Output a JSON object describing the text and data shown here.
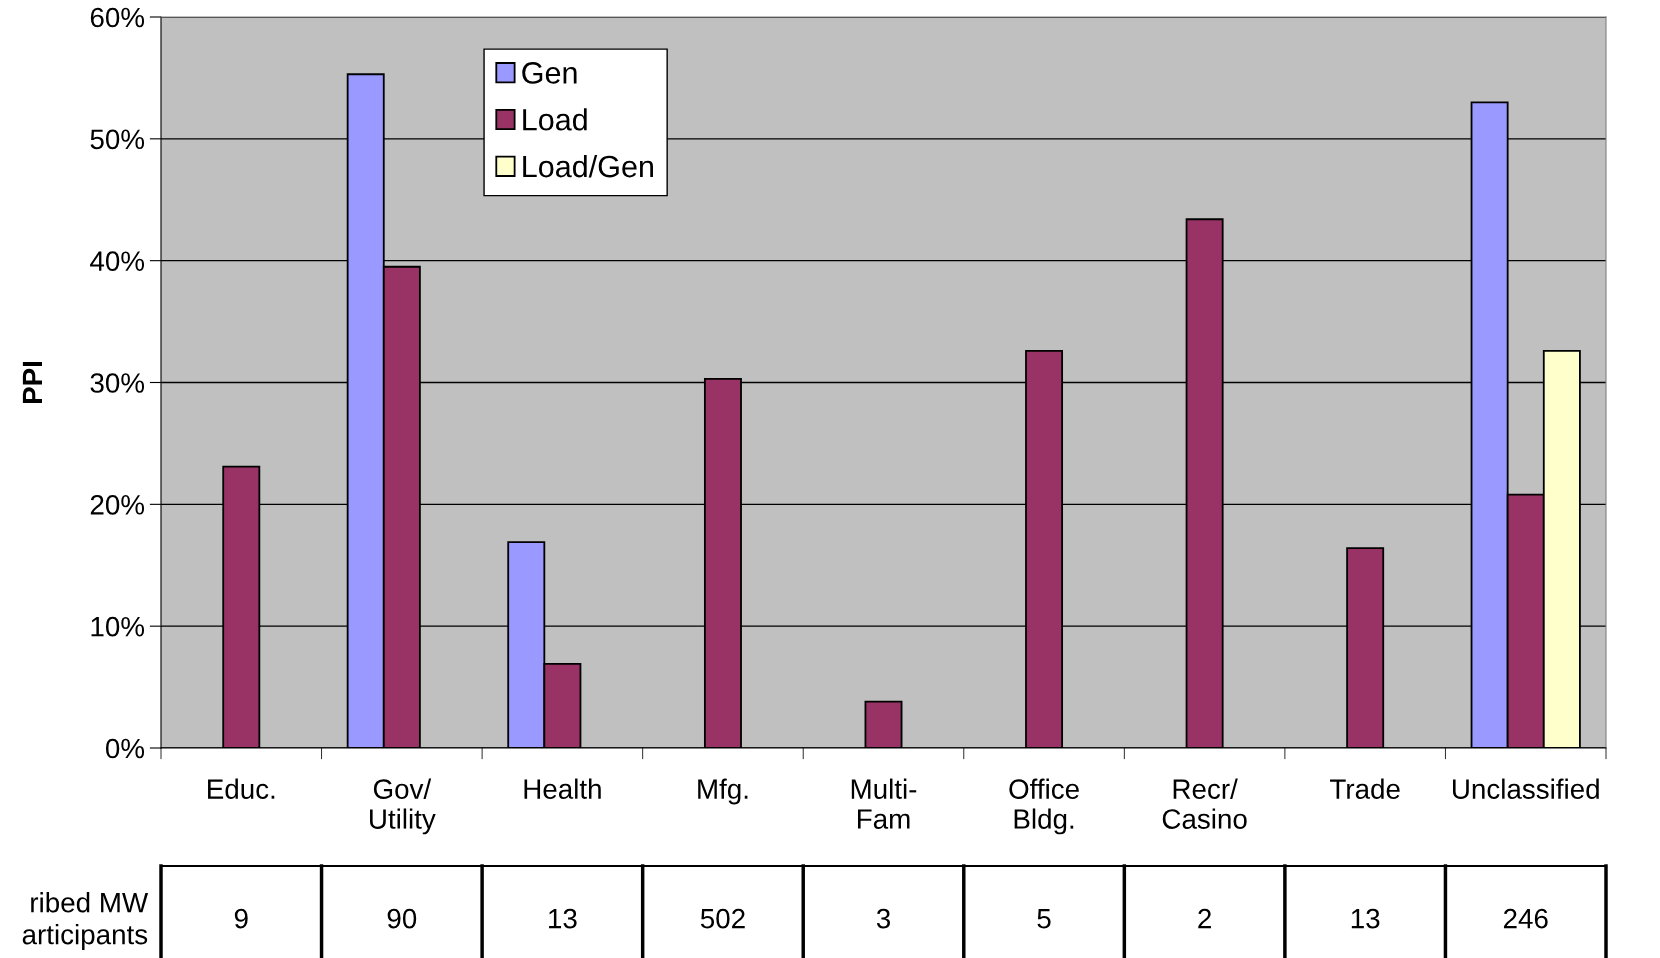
{
  "chart_data": {
    "type": "bar",
    "ylabel": "PPI",
    "categories": [
      "Educ.",
      "Gov/\nUtility",
      "Health",
      "Mfg.",
      "Multi-\nFam",
      "Office\nBldg.",
      "Recr/\nCasino",
      "Trade",
      "Unclassified"
    ],
    "series": [
      {
        "name": "Gen",
        "color": "#9999ff",
        "values": [
          null,
          55.3,
          16.9,
          null,
          null,
          null,
          null,
          null,
          53.0
        ]
      },
      {
        "name": "Load",
        "color": "#993366",
        "values": [
          23.1,
          39.5,
          6.9,
          30.3,
          3.8,
          32.6,
          43.4,
          16.4,
          20.8
        ]
      },
      {
        "name": "Load/Gen",
        "color": "#ffffcc",
        "values": [
          null,
          null,
          null,
          null,
          null,
          null,
          null,
          null,
          32.6
        ]
      }
    ],
    "ylim": [
      0,
      60
    ],
    "yticks": [
      {
        "value": 0,
        "label": "0%"
      },
      {
        "value": 10,
        "label": "10%"
      },
      {
        "value": 20,
        "label": "20%"
      },
      {
        "value": 30,
        "label": "30%"
      },
      {
        "value": 40,
        "label": "40%"
      },
      {
        "value": 50,
        "label": "50%"
      },
      {
        "value": 60,
        "label": "60%"
      }
    ],
    "grid": "y",
    "legend": "top",
    "annotations": [
      "ribed MW\narticipants",
      "9",
      "90",
      "13",
      "502",
      "3",
      "5",
      "2",
      "13",
      "246"
    ]
  }
}
